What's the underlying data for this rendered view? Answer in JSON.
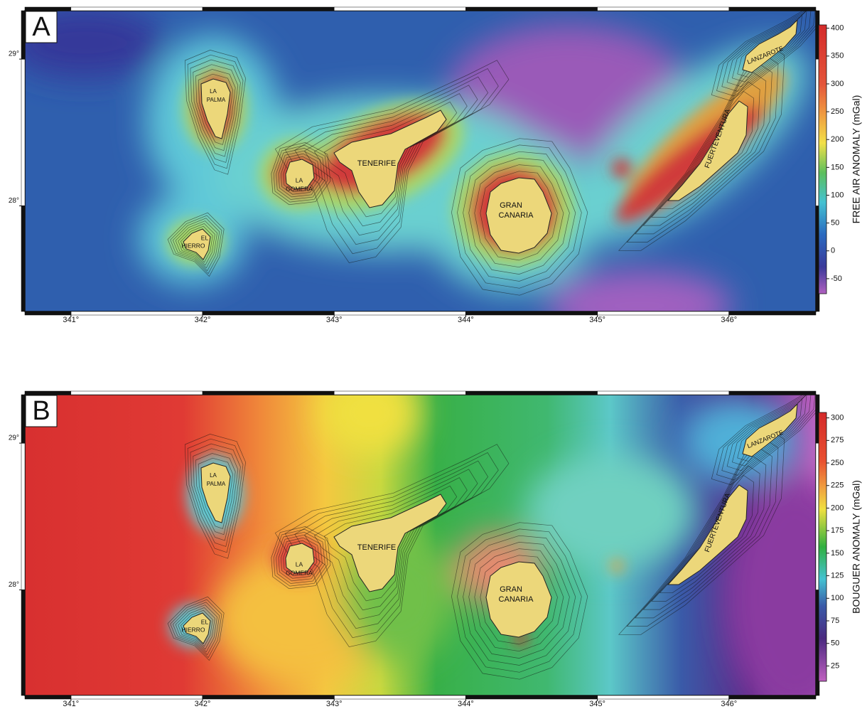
{
  "panels": [
    {
      "label": "A",
      "xlim": [
        340.65,
        346.66
      ],
      "ylim": [
        27.28,
        29.33
      ],
      "xticks": [
        {
          "value": 341,
          "label": "341°"
        },
        {
          "value": 342,
          "label": "342°"
        },
        {
          "value": 343,
          "label": "343°"
        },
        {
          "value": 344,
          "label": "344°"
        },
        {
          "value": 345,
          "label": "345°"
        },
        {
          "value": 346,
          "label": "346°"
        }
      ],
      "yticks": [
        {
          "value": 29,
          "label": "29°"
        },
        {
          "value": 28,
          "label": "28°"
        }
      ],
      "islands": [
        {
          "lines": [
            "LA",
            "PALMA"
          ]
        },
        {
          "lines": [
            "EL",
            "HIERRO"
          ]
        },
        {
          "lines": [
            "LA",
            "GOMERA"
          ]
        },
        {
          "lines": [
            "TENERIFE"
          ]
        },
        {
          "lines": [
            "GRAN",
            "CANARIA"
          ]
        },
        {
          "lines": [
            "FUERTEVENTURA"
          ]
        },
        {
          "lines": [
            "LANZAROTE"
          ]
        }
      ],
      "colorbar": {
        "title": "FREE AIR ANOMALY (mGal)",
        "lim": [
          -77,
          406
        ],
        "ticks": [
          400,
          350,
          300,
          250,
          200,
          150,
          100,
          50,
          0,
          -50
        ]
      }
    },
    {
      "label": "B",
      "xlim": [
        340.65,
        346.66
      ],
      "ylim": [
        27.28,
        29.33
      ],
      "xticks": [
        {
          "value": 341,
          "label": "341°"
        },
        {
          "value": 342,
          "label": "342°"
        },
        {
          "value": 343,
          "label": "343°"
        },
        {
          "value": 344,
          "label": "344°"
        },
        {
          "value": 345,
          "label": "345°"
        },
        {
          "value": 346,
          "label": "346°"
        }
      ],
      "yticks": [
        {
          "value": 29,
          "label": "29°"
        },
        {
          "value": 28,
          "label": "28°"
        }
      ],
      "islands": [
        {
          "lines": [
            "LA",
            "PALMA"
          ]
        },
        {
          "lines": [
            "EL",
            "HIERRO"
          ]
        },
        {
          "lines": [
            "LA",
            "GOMERA"
          ]
        },
        {
          "lines": [
            "TENERIFE"
          ]
        },
        {
          "lines": [
            "GRAN",
            "CANARIA"
          ]
        },
        {
          "lines": [
            "FUERTEVENTURA"
          ]
        },
        {
          "lines": [
            "LANZAROTE"
          ]
        }
      ],
      "colorbar": {
        "title": "BOUGUER ANOMALY (mGal)",
        "lim": [
          8,
          306
        ],
        "ticks": [
          300,
          275,
          250,
          225,
          200,
          175,
          150,
          125,
          100,
          75,
          50,
          25
        ]
      }
    }
  ]
}
